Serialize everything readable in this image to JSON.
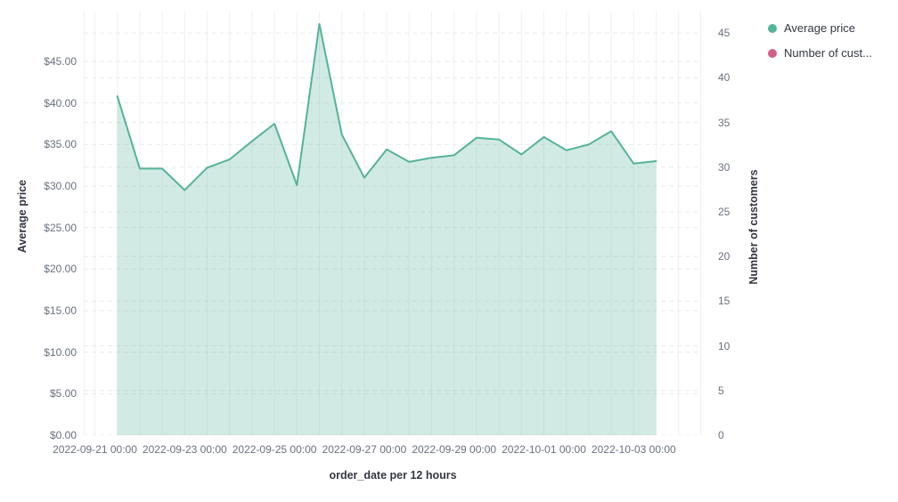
{
  "legend": {
    "position": "top-right",
    "items": [
      {
        "label": "Average price",
        "color": "#54b399"
      },
      {
        "label": "Number of cust...",
        "color": "#d36086"
      }
    ]
  },
  "chart_data": {
    "type": "area",
    "title": "",
    "x_axis_title": "order_date per 12 hours",
    "grid": {
      "vertical": true,
      "horizontal_dashed": true,
      "x_gridline_count": 27
    },
    "left_axis": {
      "title": "Average price",
      "range": [
        0,
        51.1
      ],
      "ticks": [
        {
          "label": "$0.00",
          "value": 0
        },
        {
          "label": "$5.00",
          "value": 5
        },
        {
          "label": "$10.00",
          "value": 10
        },
        {
          "label": "$15.00",
          "value": 15
        },
        {
          "label": "$20.00",
          "value": 20
        },
        {
          "label": "$25.00",
          "value": 25
        },
        {
          "label": "$30.00",
          "value": 30
        },
        {
          "label": "$35.00",
          "value": 35
        },
        {
          "label": "$40.00",
          "value": 40
        },
        {
          "label": "$45.00",
          "value": 45
        }
      ]
    },
    "right_axis": {
      "title": "Number of customers",
      "range": [
        0,
        47.5
      ],
      "ticks": [
        {
          "label": "0",
          "value": 0
        },
        {
          "label": "5",
          "value": 5
        },
        {
          "label": "10",
          "value": 10
        },
        {
          "label": "15",
          "value": 15
        },
        {
          "label": "20",
          "value": 20
        },
        {
          "label": "25",
          "value": 25
        },
        {
          "label": "30",
          "value": 30
        },
        {
          "label": "35",
          "value": 35
        },
        {
          "label": "40",
          "value": 40
        },
        {
          "label": "45",
          "value": 45
        }
      ]
    },
    "x_ticks": [
      {
        "label": "2022-09-21 00:00",
        "grid_index": 0
      },
      {
        "label": "2022-09-23 00:00",
        "grid_index": 4
      },
      {
        "label": "2022-09-25 00:00",
        "grid_index": 8
      },
      {
        "label": "2022-09-27 00:00",
        "grid_index": 12
      },
      {
        "label": "2022-09-29 00:00",
        "grid_index": 16
      },
      {
        "label": "2022-10-01 00:00",
        "grid_index": 20
      },
      {
        "label": "2022-10-03 00:00",
        "grid_index": 24
      }
    ],
    "series": [
      {
        "name": "Average price",
        "axis": "left",
        "color": "#54b399",
        "fill_rgba": "rgba(84,179,153,0.27)",
        "x": [
          "2022-09-21 12:00",
          "2022-09-22 00:00",
          "2022-09-22 12:00",
          "2022-09-23 00:00",
          "2022-09-23 12:00",
          "2022-09-24 00:00",
          "2022-09-24 12:00",
          "2022-09-25 00:00",
          "2022-09-25 12:00",
          "2022-09-26 00:00",
          "2022-09-26 12:00",
          "2022-09-27 00:00",
          "2022-09-27 12:00",
          "2022-09-28 00:00",
          "2022-09-28 12:00",
          "2022-09-29 00:00",
          "2022-09-29 12:00",
          "2022-09-30 00:00",
          "2022-09-30 12:00",
          "2022-10-01 00:00",
          "2022-10-01 12:00",
          "2022-10-02 00:00",
          "2022-10-02 12:00",
          "2022-10-03 00:00",
          "2022-10-03 12:00"
        ],
        "values": [
          40.8,
          32.1,
          32.1,
          29.5,
          32.2,
          33.2,
          35.4,
          37.5,
          30.1,
          49.5,
          36.2,
          31.0,
          34.4,
          32.9,
          33.4,
          33.7,
          35.8,
          35.6,
          33.8,
          35.9,
          34.3,
          35.0,
          36.6,
          32.7,
          33.0
        ]
      },
      {
        "name": "Number of customers",
        "axis": "right",
        "color": "#d36086",
        "values": []
      }
    ]
  }
}
